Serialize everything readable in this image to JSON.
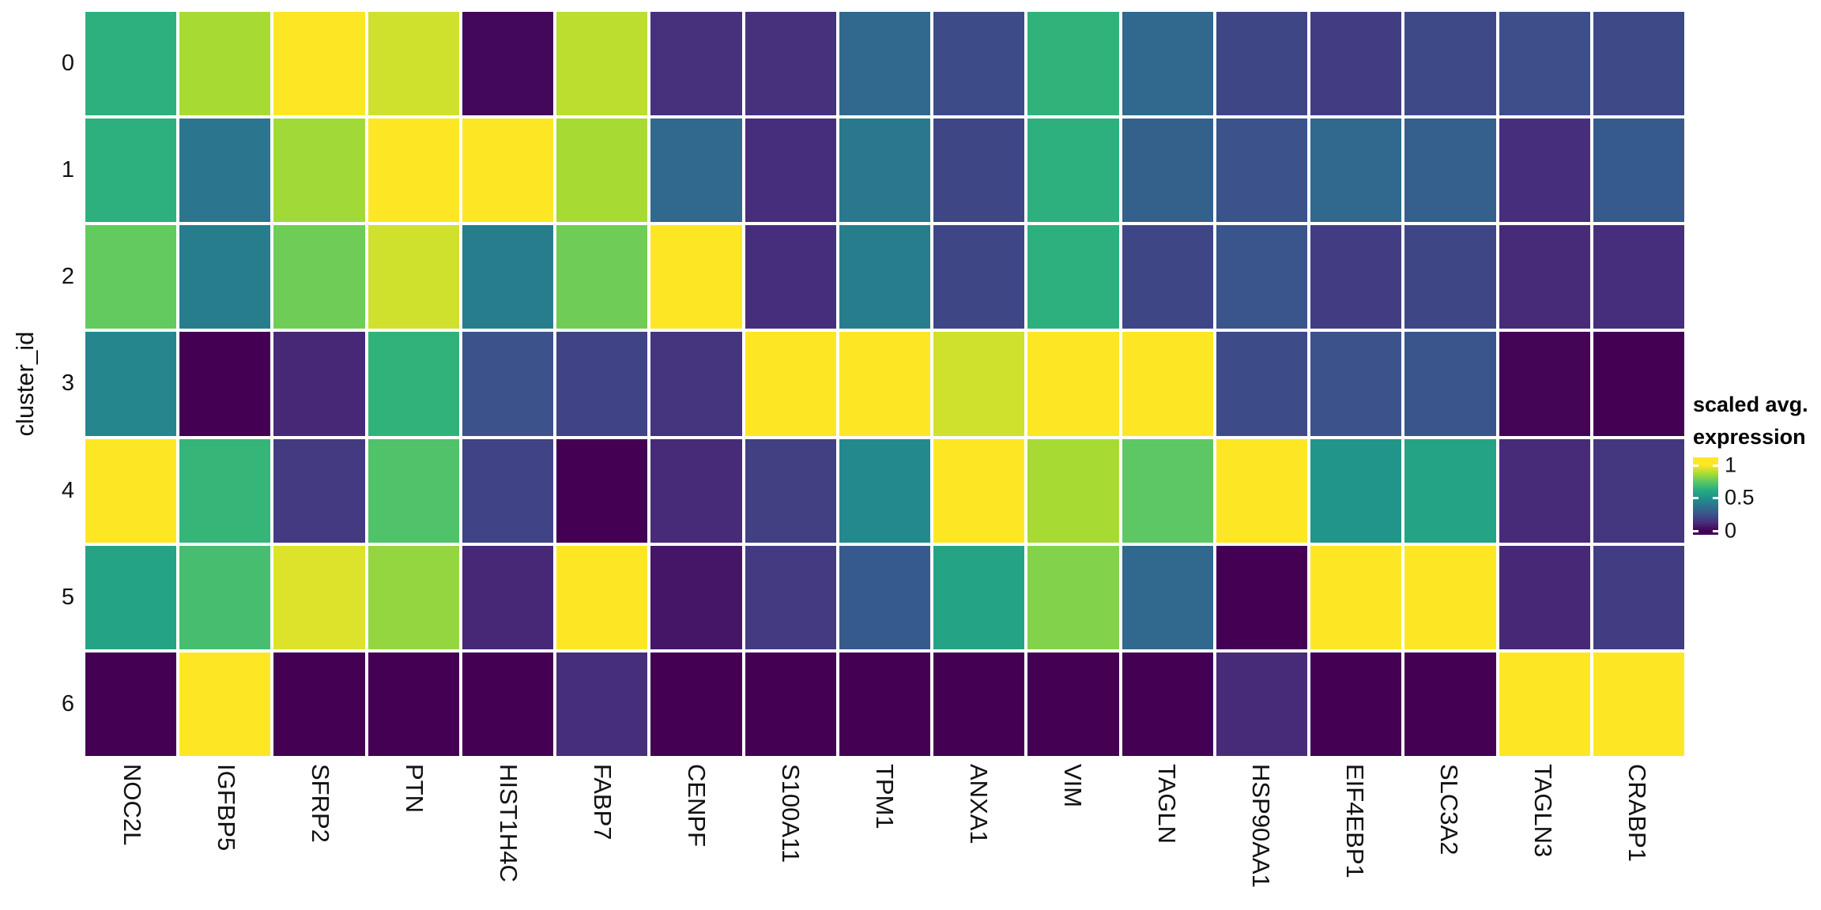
{
  "chart_data": {
    "type": "heatmap",
    "title": "",
    "xlabel": "",
    "ylabel": "cluster_id",
    "x_categories": [
      "NOC2L",
      "IGFBP5",
      "SFRP2",
      "PTN",
      "HIST1H4C",
      "FABP7",
      "CENPF",
      "S100A11",
      "TPM1",
      "ANXA1",
      "VIM",
      "TAGLN",
      "HSP90AA1",
      "EIF4EBP1",
      "SLC3A2",
      "TAGLN3",
      "CRABP1"
    ],
    "y_categories": [
      "0",
      "1",
      "2",
      "3",
      "4",
      "5",
      "6"
    ],
    "values": [
      [
        0.64,
        0.87,
        1.0,
        0.93,
        0.02,
        0.9,
        0.14,
        0.14,
        0.34,
        0.23,
        0.65,
        0.34,
        0.21,
        0.18,
        0.22,
        0.24,
        0.22
      ],
      [
        0.64,
        0.39,
        0.86,
        1.0,
        1.0,
        0.87,
        0.34,
        0.13,
        0.4,
        0.21,
        0.64,
        0.31,
        0.25,
        0.34,
        0.3,
        0.13,
        0.28
      ],
      [
        0.76,
        0.42,
        0.78,
        0.93,
        0.42,
        0.78,
        1.0,
        0.13,
        0.42,
        0.21,
        0.64,
        0.21,
        0.26,
        0.18,
        0.21,
        0.12,
        0.13
      ],
      [
        0.46,
        0.0,
        0.11,
        0.65,
        0.25,
        0.2,
        0.15,
        1.0,
        1.0,
        0.93,
        1.0,
        1.0,
        0.23,
        0.25,
        0.26,
        0.01,
        0.0
      ],
      [
        1.0,
        0.66,
        0.17,
        0.72,
        0.2,
        0.0,
        0.12,
        0.19,
        0.47,
        1.0,
        0.87,
        0.75,
        1.0,
        0.52,
        0.58,
        0.12,
        0.16
      ],
      [
        0.58,
        0.7,
        0.95,
        0.84,
        0.11,
        1.0,
        0.06,
        0.17,
        0.28,
        0.58,
        0.81,
        0.34,
        0.0,
        1.0,
        1.0,
        0.11,
        0.18
      ],
      [
        0.0,
        1.0,
        0.0,
        0.0,
        0.0,
        0.13,
        0.0,
        0.0,
        0.0,
        0.0,
        0.0,
        0.0,
        0.12,
        0.0,
        0.0,
        1.0,
        1.0
      ]
    ],
    "legend": {
      "title_line1": "scaled avg.",
      "title_line2": "expression",
      "ticks": [
        {
          "label": "1",
          "value": 1.0
        },
        {
          "label": "0.5",
          "value": 0.5
        },
        {
          "label": "0",
          "value": 0.0
        }
      ]
    },
    "colormap": "viridis",
    "colormap_anchors": [
      "#440154",
      "#472d7b",
      "#3b528b",
      "#2c728e",
      "#21908c",
      "#27ad81",
      "#5dc863",
      "#aadc32",
      "#fde725"
    ],
    "value_range": [
      0,
      1
    ],
    "grid_gap_color": "#ffffff",
    "legend_position": "right"
  }
}
